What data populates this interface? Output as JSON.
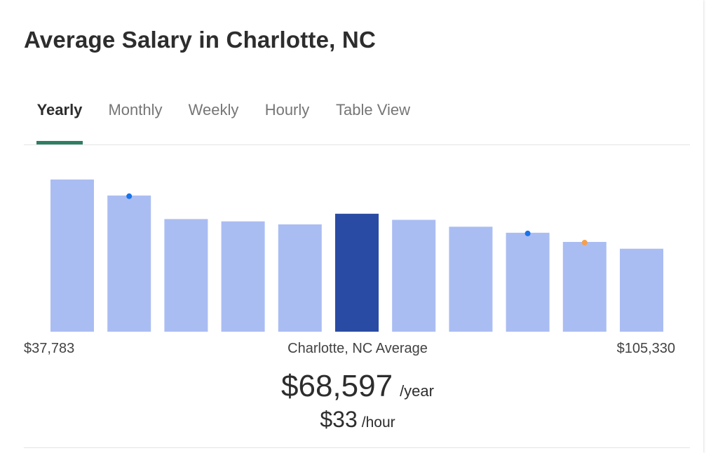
{
  "title": "Average Salary in Charlotte, NC",
  "tabs": [
    {
      "label": "Yearly",
      "active": true
    },
    {
      "label": "Monthly",
      "active": false
    },
    {
      "label": "Weekly",
      "active": false
    },
    {
      "label": "Hourly",
      "active": false
    },
    {
      "label": "Table View",
      "active": false
    }
  ],
  "range": {
    "min": "$37,783",
    "max": "$105,330"
  },
  "average": {
    "label": "Charlotte, NC Average",
    "yearly_value": "$68,597",
    "yearly_unit": "/year",
    "hourly_value": "$33",
    "hourly_unit": "/hour"
  },
  "colors": {
    "bar": "#aabdf2",
    "bar_highlight": "#2a4ba3",
    "marker_blue": "#1a73e8",
    "marker_orange": "#f5a04a",
    "tab_underline": "#2e7d63"
  },
  "chart_data": {
    "type": "bar",
    "title": "",
    "xlabel": "",
    "ylabel": "",
    "values": [
      100,
      89.5,
      74,
      72.5,
      70.5,
      77.5,
      73.5,
      69,
      65,
      59,
      54.5
    ],
    "ylim": [
      0,
      100
    ],
    "highlight_index": 5,
    "markers": [
      {
        "index": 1,
        "color": "blue"
      },
      {
        "index": 8,
        "color": "blue"
      },
      {
        "index": 9,
        "color": "orange"
      }
    ],
    "grid": false,
    "legend": "none"
  }
}
